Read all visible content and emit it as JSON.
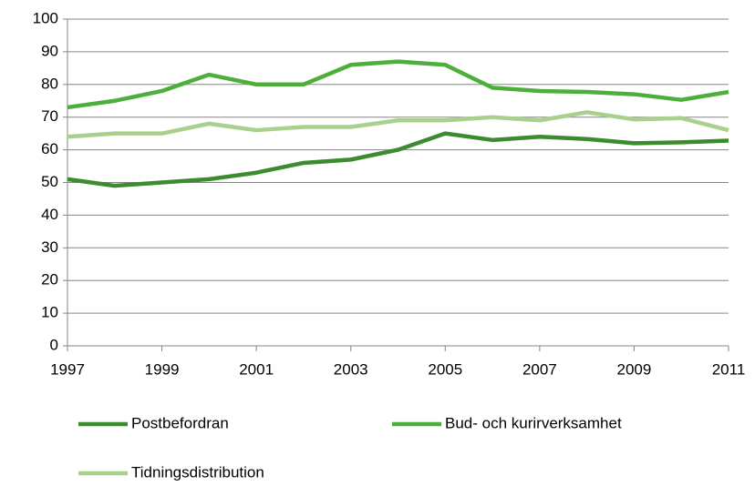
{
  "chart_data": {
    "type": "line",
    "x": [
      1997,
      1998,
      1999,
      2000,
      2001,
      2002,
      2003,
      2004,
      2005,
      2006,
      2007,
      2008,
      2009,
      2010,
      2011
    ],
    "series": [
      {
        "name": "Postbefordran",
        "color": "#3d8b2f",
        "values": [
          51,
          49,
          50,
          51,
          53,
          56,
          57,
          60,
          65,
          63,
          64,
          63.3,
          62,
          62.3,
          62.8
        ]
      },
      {
        "name": "Bud- och kurirverksamhet",
        "color": "#4caf3b",
        "values": [
          73,
          75,
          78,
          83,
          80,
          80,
          86,
          87,
          86,
          79,
          78,
          77.7,
          77,
          75.3,
          77.7
        ]
      },
      {
        "name": "Tidningsdistribution",
        "color": "#a9d18e",
        "values": [
          64,
          65,
          65,
          68,
          66,
          67,
          67,
          69,
          69,
          70,
          69,
          71.5,
          69.3,
          69.7,
          66
        ]
      }
    ],
    "xlim": [
      1997,
      2011
    ],
    "xticks": [
      1997,
      1999,
      2001,
      2003,
      2005,
      2007,
      2009,
      2011
    ],
    "ylim": [
      0,
      100
    ],
    "yticks": [
      0,
      10,
      20,
      30,
      40,
      50,
      60,
      70,
      80,
      90,
      100
    ],
    "grid": true,
    "legend": "bottom"
  }
}
